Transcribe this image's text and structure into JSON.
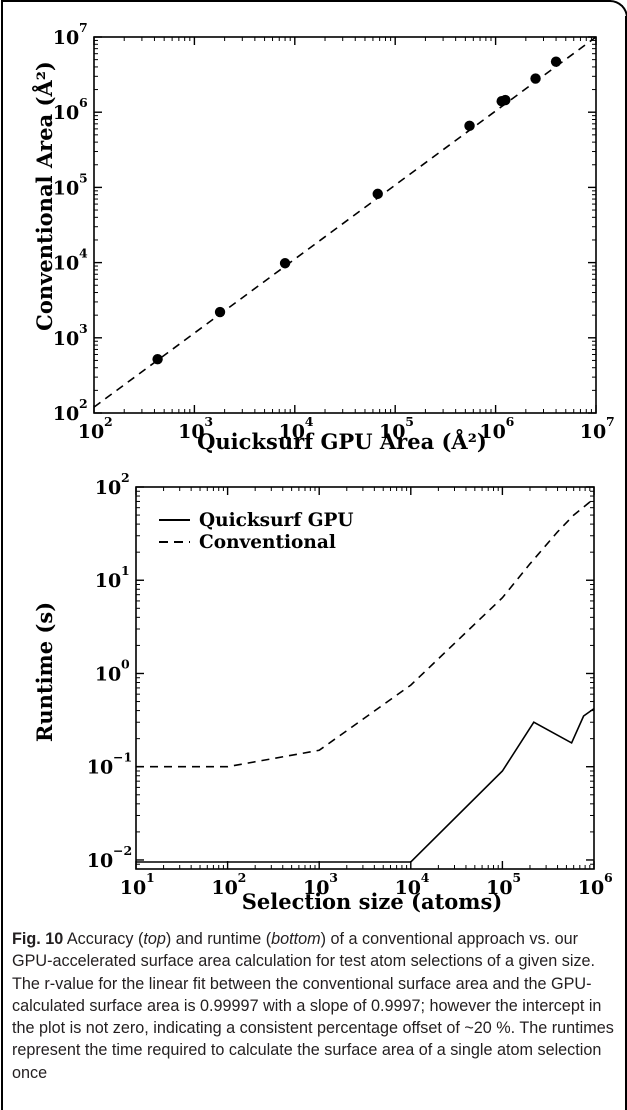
{
  "chart_data": [
    {
      "type": "scatter",
      "title": "",
      "xlabel": "Quicksurf GPU Area (Å²)",
      "ylabel": "Conventional Area (Å²)",
      "xscale": "log",
      "yscale": "log",
      "xlim": [
        100,
        10000000
      ],
      "ylim": [
        100,
        10000000
      ],
      "xticks": [
        {
          "base": "10",
          "exp": "2"
        },
        {
          "base": "10",
          "exp": "3"
        },
        {
          "base": "10",
          "exp": "4"
        },
        {
          "base": "10",
          "exp": "5"
        },
        {
          "base": "10",
          "exp": "6"
        },
        {
          "base": "10",
          "exp": "7"
        }
      ],
      "yticks": [
        {
          "base": "10",
          "exp": "2"
        },
        {
          "base": "10",
          "exp": "3"
        },
        {
          "base": "10",
          "exp": "4"
        },
        {
          "base": "10",
          "exp": "5"
        },
        {
          "base": "10",
          "exp": "6"
        },
        {
          "base": "10",
          "exp": "7"
        }
      ],
      "grid": false,
      "series": [
        {
          "points": [
            [
              430,
              520
            ],
            [
              1800,
              2200
            ],
            [
              8000,
              9800
            ],
            [
              67000,
              82000
            ],
            [
              550000,
              660000
            ],
            [
              1150000,
              1400000
            ],
            [
              1250000,
              1450000
            ],
            [
              2500000,
              2800000
            ],
            [
              4000000,
              4700000
            ]
          ]
        }
      ],
      "fit_line": {
        "style": "dashed",
        "slope": 0.9997,
        "factor": 1.2,
        "x_range": [
          100,
          10000000
        ]
      }
    },
    {
      "type": "line",
      "title": "",
      "xlabel": "Selection size (atoms)",
      "ylabel": "Runtime (s)",
      "xscale": "log",
      "yscale": "log",
      "xlim": [
        10,
        1000000
      ],
      "ylim": [
        0.008,
        100
      ],
      "xticks": [
        {
          "base": "10",
          "exp": "1"
        },
        {
          "base": "10",
          "exp": "2"
        },
        {
          "base": "10",
          "exp": "3"
        },
        {
          "base": "10",
          "exp": "4"
        },
        {
          "base": "10",
          "exp": "5"
        },
        {
          "base": "10",
          "exp": "6"
        }
      ],
      "yticks": [
        {
          "value": 0.01,
          "base": "10",
          "exp": "−2"
        },
        {
          "value": 0.1,
          "base": "10",
          "exp": "−1"
        },
        {
          "value": 1,
          "base": "10",
          "exp": "0"
        },
        {
          "value": 10,
          "base": "10",
          "exp": "1"
        },
        {
          "value": 100,
          "base": "10",
          "exp": "2"
        }
      ],
      "grid": false,
      "legend_position": "top-left",
      "series": [
        {
          "name": "Quicksurf GPU",
          "style": "solid",
          "x": [
            10,
            10000,
            100000,
            220000,
            570000,
            770000,
            1000000
          ],
          "y": [
            0.0095,
            0.0095,
            0.09,
            0.3,
            0.18,
            0.35,
            0.42
          ]
        },
        {
          "name": "Conventional",
          "style": "dashed",
          "x": [
            10,
            100,
            1000,
            10000,
            100000,
            200000,
            400000,
            600000,
            1000000
          ],
          "y": [
            0.1,
            0.1,
            0.15,
            0.75,
            6.5,
            15,
            33,
            50,
            75
          ]
        }
      ]
    }
  ],
  "caption": {
    "label": "Fig. 10",
    "text1": " Accuracy (",
    "em1": "top",
    "text2": ") and runtime (",
    "em2": "bottom",
    "text3": ") of a conventional approach vs. our GPU-accelerated surface area calculation for test atom selections of a given size. The r-value for the linear fit between the conventional surface area and the GPU-calculated surface area is 0.99997 with a slope of 0.9997; however the intercept in the plot is not zero, indicating a consistent percentage offset of ~20 %. The runtimes represent the time required to calculate the surface area of a single atom selection once"
  }
}
